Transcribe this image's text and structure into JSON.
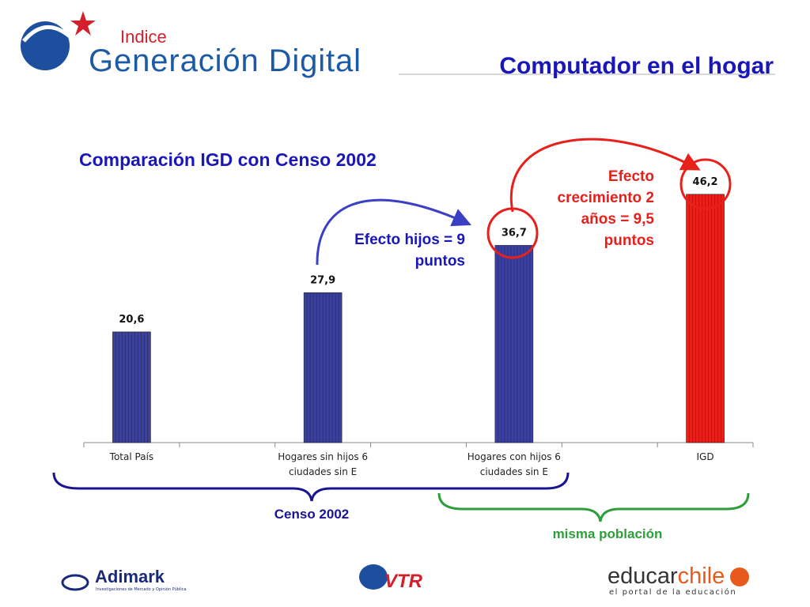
{
  "header": {
    "title": "Computador en el hogar"
  },
  "logos": {
    "igd_small": "Indice",
    "igd_main": "Generación Digital",
    "adimark": "Adimark",
    "adimark_sub": "Investigaciones de Mercado y Opinión Pública",
    "vtr": "VTR",
    "educar_a": "educar",
    "educar_b": "chile",
    "educar_sub": "el portal de la educación"
  },
  "chart_data": {
    "type": "bar",
    "title": "Comparación IGD con Censo 2002",
    "categories": [
      "Total País",
      null,
      "Hogares sin hijos 6 ciudades sin E",
      null,
      "Hogares con hijos 6 ciudades sin E",
      null,
      "IGD"
    ],
    "values": [
      20.6,
      null,
      27.9,
      null,
      36.7,
      null,
      46.2
    ],
    "value_labels": [
      "20,6",
      null,
      "27,9",
      null,
      "36,7",
      null,
      "46,2"
    ],
    "colors": [
      "#3b3f9e",
      null,
      "#3b3f9e",
      null,
      "#3b3f9e",
      null,
      "#e8201c"
    ],
    "ylim": [
      0,
      55
    ],
    "annotations": {
      "hijos": "Efecto hijos = 9 puntos",
      "crecimiento": "Efecto crecimiento 2 años = 9,5 puntos",
      "censo": "Censo 2002",
      "poblacion": "misma población"
    }
  }
}
